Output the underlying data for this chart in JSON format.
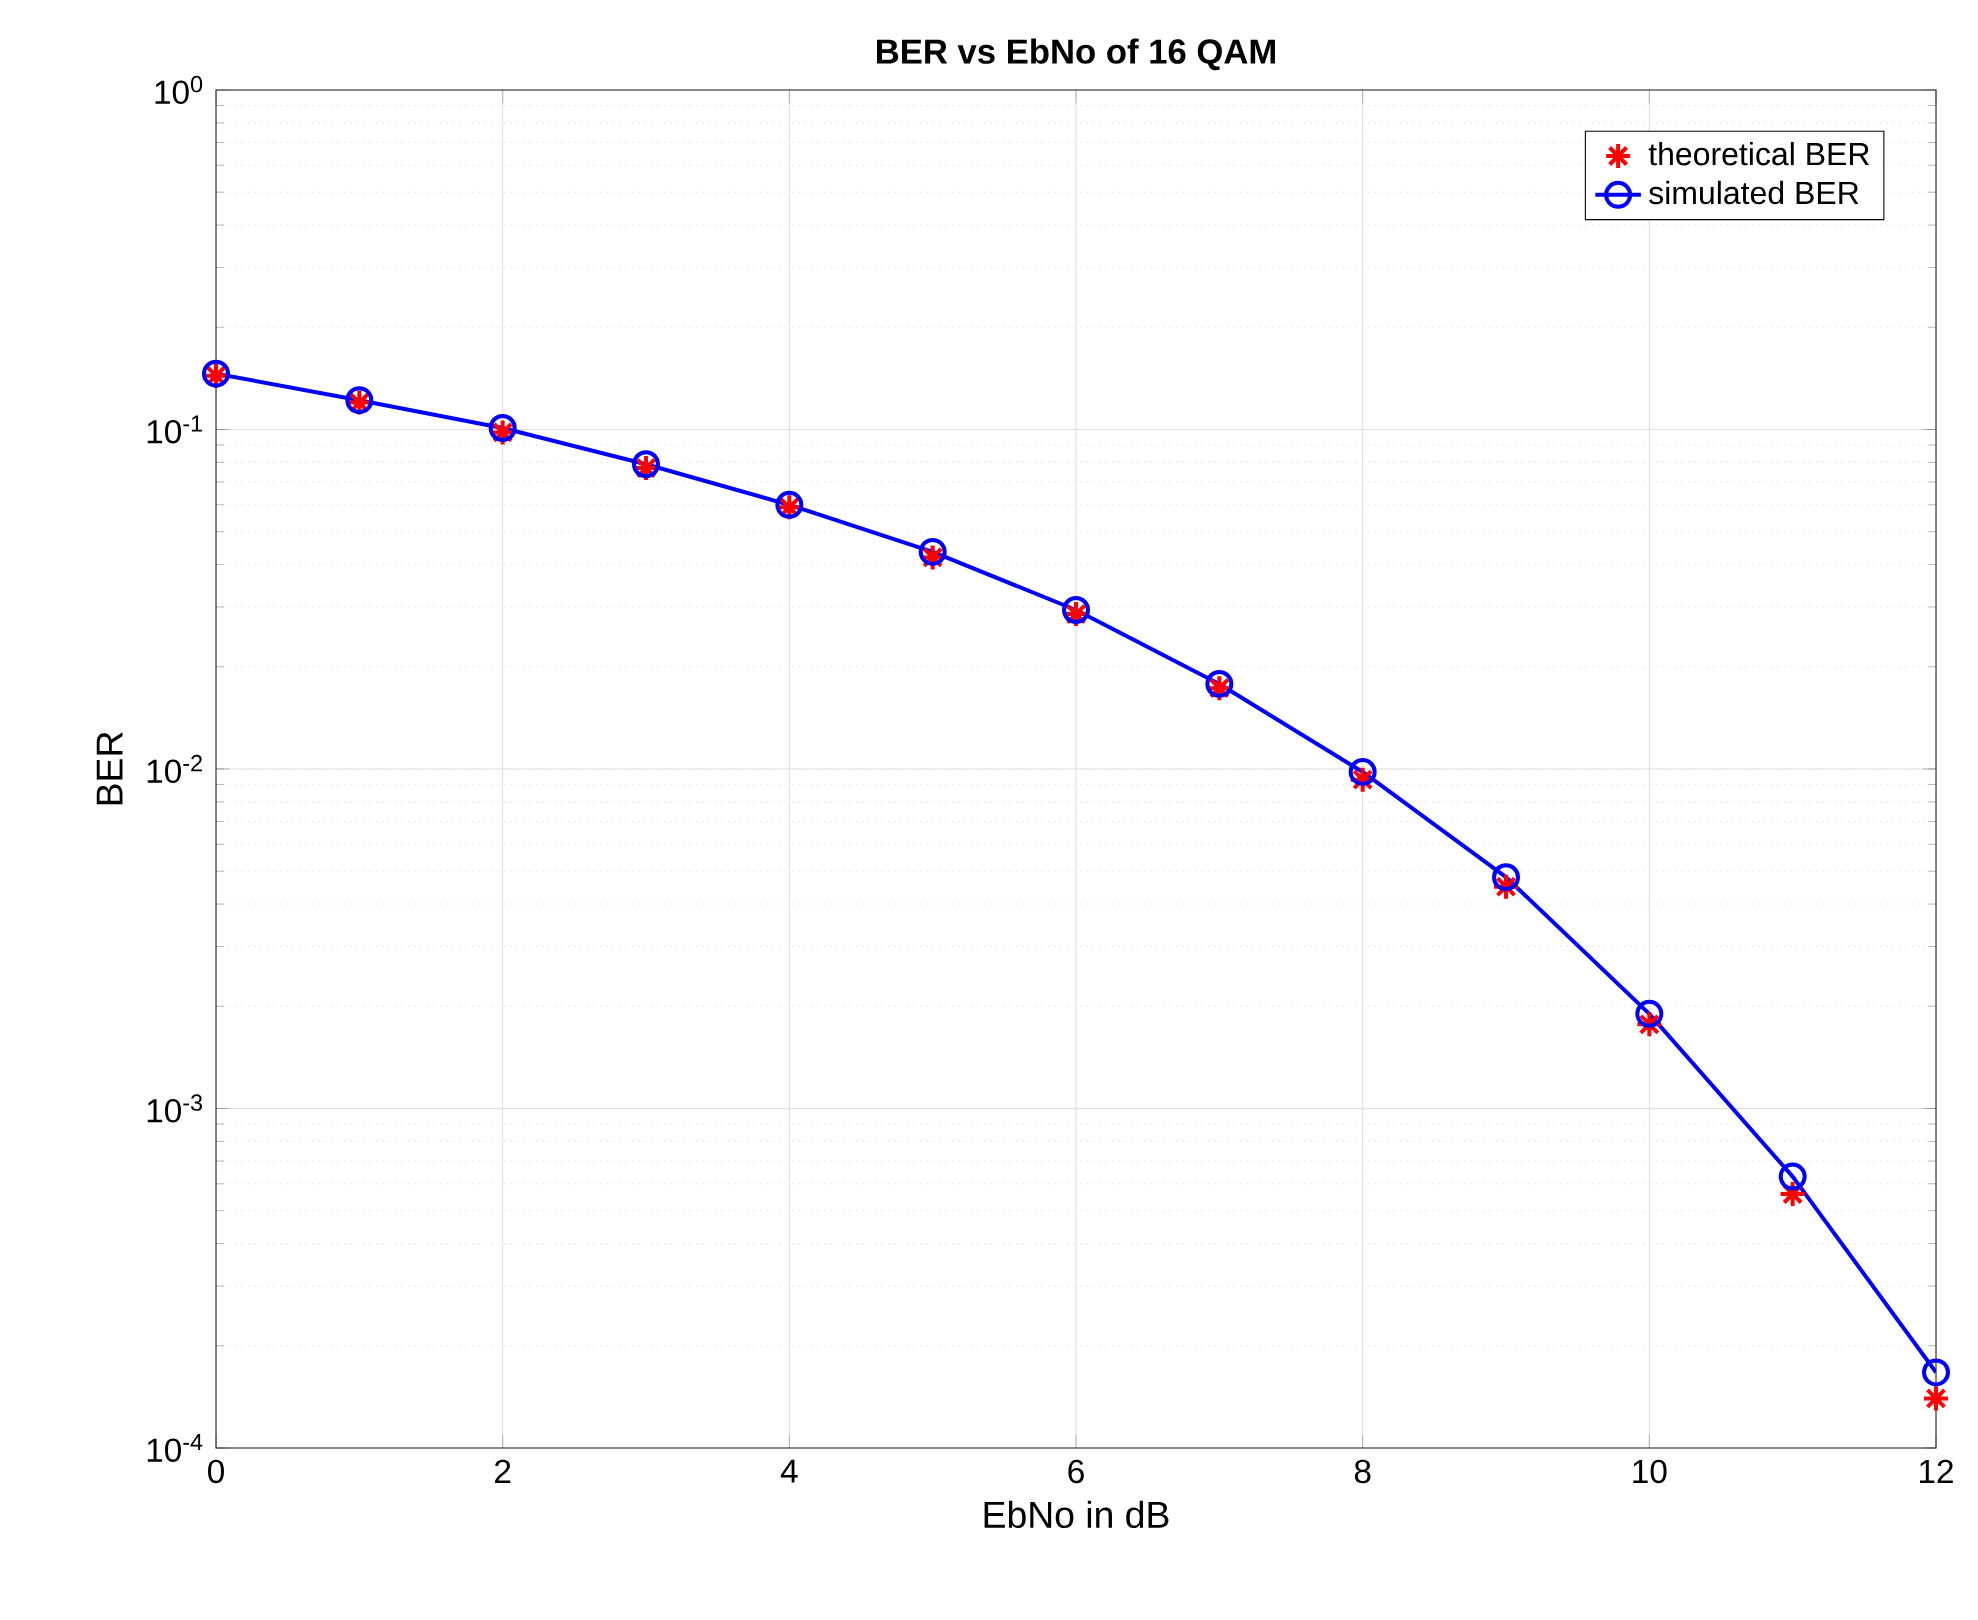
{
  "chart_data": {
    "type": "line",
    "title": "BER vs EbNo of 16 QAM",
    "xlabel": "EbNo in dB",
    "ylabel": "BER",
    "x": [
      0,
      1,
      2,
      3,
      4,
      5,
      6,
      7,
      8,
      9,
      10,
      11,
      12
    ],
    "series": [
      {
        "name": "theoretical BER",
        "type": "scatter",
        "color": "#ff0000",
        "marker": "cross",
        "values": [
          0.144,
          0.12,
          0.098,
          0.077,
          0.059,
          0.042,
          0.0286,
          0.0173,
          0.0093,
          0.0045,
          0.00177,
          0.00056,
          0.00014
        ]
      },
      {
        "name": "simulated BER",
        "color": "#0000ff",
        "marker": "circle",
        "line_style": "solid",
        "values": [
          0.146,
          0.122,
          0.101,
          0.079,
          0.06,
          0.0436,
          0.0294,
          0.0178,
          0.0098,
          0.0048,
          0.0019,
          0.00063,
          0.000167
        ]
      }
    ],
    "xlim": [
      0,
      12
    ],
    "xticks": [
      0,
      2,
      4,
      6,
      8,
      10,
      12
    ],
    "ylim": [
      0.0001,
      1
    ],
    "yticks": [
      {
        "value": 0.0001,
        "label": "10$^{-4}$"
      },
      {
        "value": 0.001,
        "label": "10$^{-3}$"
      },
      {
        "value": 0.01,
        "label": "10$^{-2}$"
      },
      {
        "value": 0.1,
        "label": "10$^{-1}$"
      },
      {
        "value": 1,
        "label": "10$^{0}$"
      }
    ],
    "log": "y",
    "grid": true,
    "legend": "top right"
  }
}
